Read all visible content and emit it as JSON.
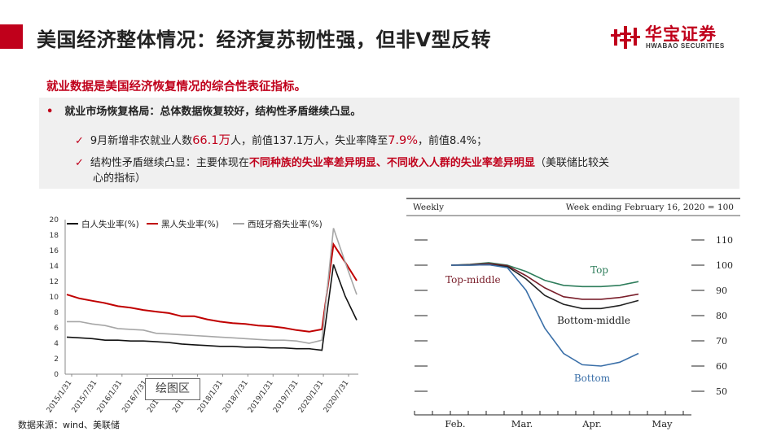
{
  "header": {
    "title": "美国经济整体情况：经济复苏韧性强，但非V型反转",
    "logo_cn": "华宝证券",
    "logo_en": "HWABAO SECURITIES"
  },
  "content": {
    "headline": "就业数据是美国经济恢复情况的综合性表征指标。",
    "bullet": "就业市场恢复格局：总体数据恢复较好，结构性矛盾继续凸显。",
    "check1": {
      "pre": "9月新增非农就业人数",
      "v1": "66.1万",
      "mid": "人，前值137.1万人，失业率降至",
      "v2": "7.9%",
      "post": "，前值8.4%；"
    },
    "check2": {
      "pre": "结构性矛盾继续凸显：主要体现在",
      "hl": "不同种族的失业率差异明显、不同收入人群的失业率差异明显",
      "post": "（美联储比较关",
      "cont": "心的指标）"
    }
  },
  "source": "数据来源：wind、美联储",
  "draw_area_label": "绘图区",
  "chart_data": [
    {
      "type": "line",
      "title": "",
      "legend": [
        "白人失业率(%)",
        "黑人失业率(%)",
        "西班牙裔失业率(%)"
      ],
      "legend_position": "top",
      "ylim": [
        0,
        20
      ],
      "yticks": [
        0,
        2,
        4,
        6,
        8,
        10,
        12,
        14,
        16,
        18,
        20
      ],
      "xticks": [
        "2015/1/31",
        "2015/7/31",
        "2016/1/31",
        "2016/7/31",
        "2017/1/31",
        "2017/7/31",
        "2018/1/31",
        "2018/7/31",
        "2019/1/31",
        "2019/7/31",
        "2020/1/31",
        "2020/7/31"
      ],
      "series": [
        {
          "name": "白人失业率(%)",
          "color": "#111111",
          "values": [
            4.8,
            4.7,
            4.6,
            4.4,
            4.4,
            4.3,
            4.3,
            4.2,
            4.1,
            3.9,
            3.8,
            3.7,
            3.6,
            3.6,
            3.5,
            3.5,
            3.4,
            3.4,
            3.3,
            3.3,
            3.1,
            14.2,
            10.1,
            7.0
          ]
        },
        {
          "name": "黑人失业率(%)",
          "color": "#c00000",
          "values": [
            10.3,
            9.8,
            9.5,
            9.2,
            8.8,
            8.6,
            8.3,
            8.1,
            7.9,
            7.5,
            7.5,
            7.1,
            6.8,
            6.6,
            6.5,
            6.3,
            6.2,
            6.0,
            5.7,
            5.5,
            5.8,
            16.8,
            14.5,
            12.1
          ]
        },
        {
          "name": "西班牙裔失业率(%)",
          "color": "#a6a6a6",
          "values": [
            6.8,
            6.8,
            6.5,
            6.3,
            5.9,
            5.8,
            5.7,
            5.3,
            5.2,
            5.1,
            5.0,
            4.9,
            4.8,
            4.7,
            4.6,
            4.5,
            4.4,
            4.4,
            4.3,
            4.0,
            4.4,
            18.9,
            14.5,
            10.3
          ]
        }
      ]
    },
    {
      "type": "line",
      "title_left": "Weekly",
      "title_right": "Week ending February 16, 2020 = 100",
      "ylim": [
        50,
        110
      ],
      "yticks": [
        50,
        60,
        70,
        80,
        90,
        100,
        110
      ],
      "xticks": [
        "Feb.",
        "Mar.",
        "Apr.",
        "May"
      ],
      "series": [
        {
          "name": "Top",
          "color": "#2e7d5b",
          "values": [
            100,
            100.3,
            101,
            100,
            97.5,
            94,
            92,
            91.5,
            91.5,
            92,
            93.5
          ]
        },
        {
          "name": "Top-middle",
          "color": "#7a1f2b",
          "values": [
            100,
            100.2,
            100.6,
            99.8,
            95.8,
            91,
            87.5,
            86.5,
            86.5,
            87.2,
            88.5
          ]
        },
        {
          "name": "Bottom-middle",
          "color": "#222222",
          "values": [
            100,
            100,
            100.2,
            99.5,
            94.5,
            88,
            84.5,
            82.8,
            82.8,
            84,
            86
          ]
        },
        {
          "name": "Bottom",
          "color": "#3a6fa8",
          "values": [
            100,
            100,
            100.2,
            99,
            90,
            75,
            65,
            60.5,
            60,
            61.5,
            65
          ]
        }
      ]
    }
  ]
}
